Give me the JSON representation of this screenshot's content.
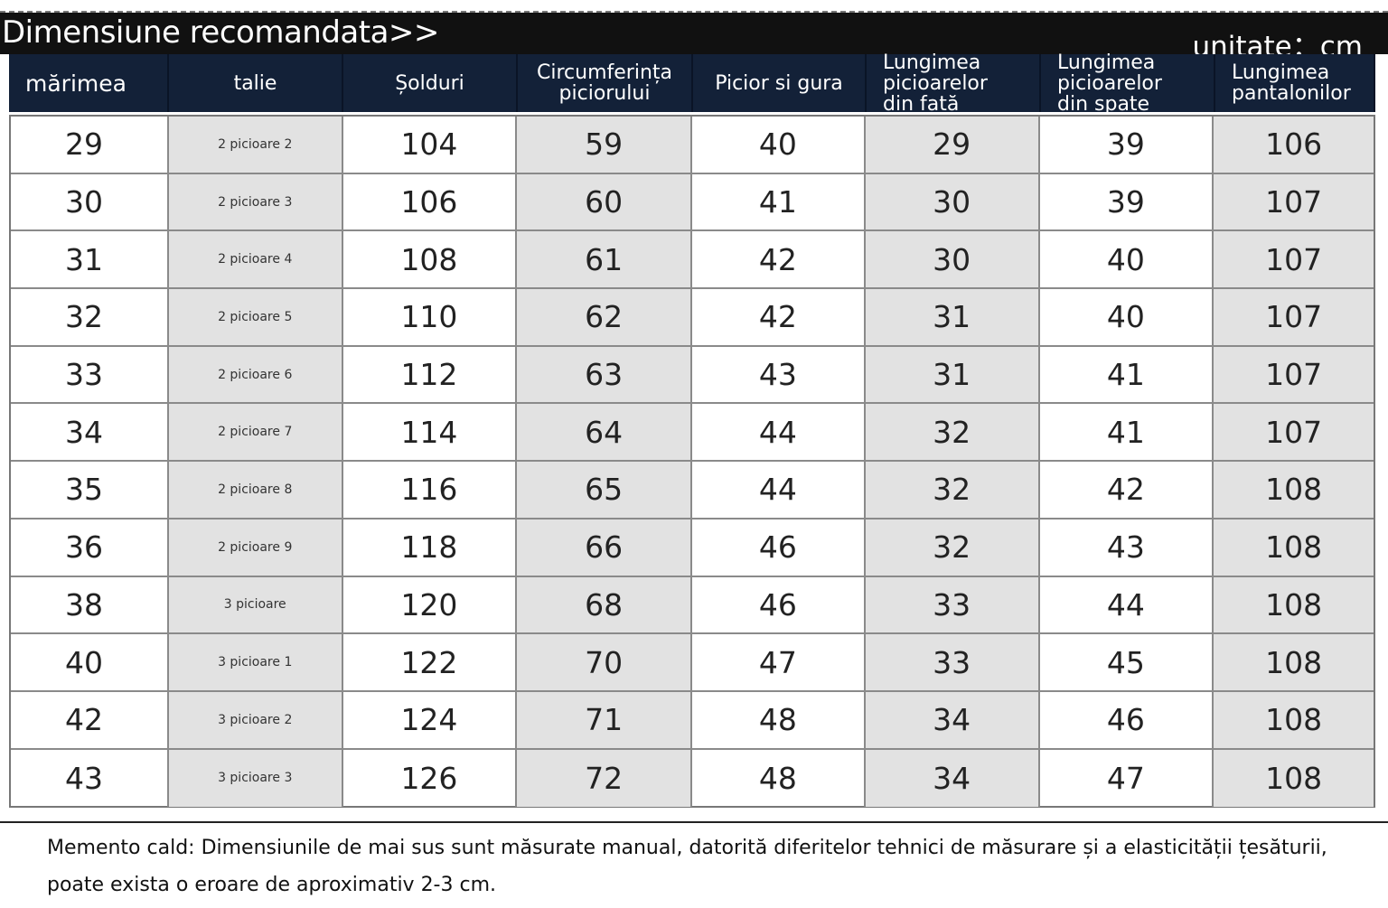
{
  "title": "Dimensiune recomandata>>",
  "unit": "unitate：cm",
  "columns": [
    "mărimea",
    "talie",
    "Șolduri",
    "Circumferința\npiciorului",
    "Picior si gura",
    "Lungimea\npicioarelor\ndin față",
    "Lungimea\npicioarelor\ndin spate",
    "Lungimea\npantalonilor"
  ],
  "rows": [
    [
      "29",
      "2 picioare 2",
      "104",
      "59",
      "40",
      "29",
      "39",
      "106"
    ],
    [
      "30",
      "2 picioare 3",
      "106",
      "60",
      "41",
      "30",
      "39",
      "107"
    ],
    [
      "31",
      "2 picioare 4",
      "108",
      "61",
      "42",
      "30",
      "40",
      "107"
    ],
    [
      "32",
      "2 picioare 5",
      "110",
      "62",
      "42",
      "31",
      "40",
      "107"
    ],
    [
      "33",
      "2 picioare 6",
      "112",
      "63",
      "43",
      "31",
      "41",
      "107"
    ],
    [
      "34",
      "2 picioare 7",
      "114",
      "64",
      "44",
      "32",
      "41",
      "107"
    ],
    [
      "35",
      "2 picioare 8",
      "116",
      "65",
      "44",
      "32",
      "42",
      "108"
    ],
    [
      "36",
      "2 picioare 9",
      "118",
      "66",
      "46",
      "32",
      "43",
      "108"
    ],
    [
      "38",
      "3 picioare",
      "120",
      "68",
      "46",
      "33",
      "44",
      "108"
    ],
    [
      "40",
      "3 picioare 1",
      "122",
      "70",
      "47",
      "33",
      "45",
      "108"
    ],
    [
      "42",
      "3 picioare 2",
      "124",
      "71",
      "48",
      "34",
      "46",
      "108"
    ],
    [
      "43",
      "3 picioare 3",
      "126",
      "72",
      "48",
      "34",
      "47",
      "108"
    ]
  ],
  "note": {
    "line1": "Memento cald: Dimensiunile de mai sus sunt măsurate manual, datorită diferitelor tehnici de măsurare și a elasticității țesăturii,",
    "line2": "poate exista o eroare de aproximativ 2-3 cm."
  }
}
